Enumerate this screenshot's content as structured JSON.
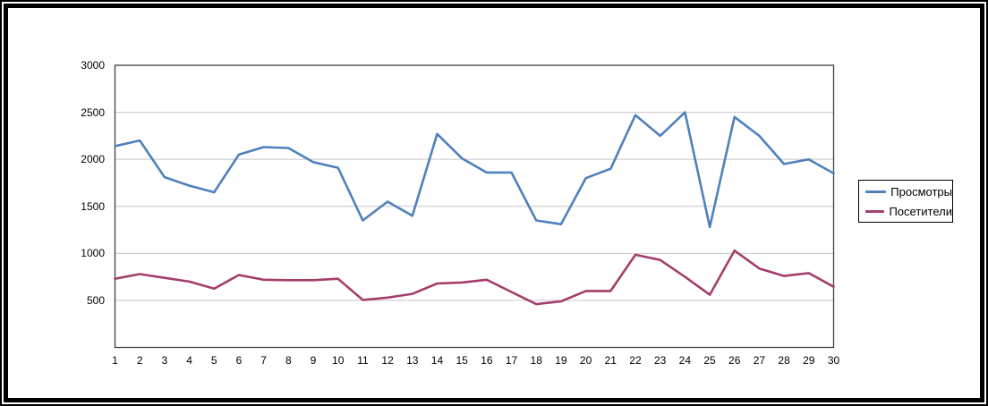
{
  "chart_data": {
    "type": "line",
    "title": "",
    "xlabel": "",
    "ylabel": "",
    "categories": [
      1,
      2,
      3,
      4,
      5,
      6,
      7,
      8,
      9,
      10,
      11,
      12,
      13,
      14,
      15,
      16,
      17,
      18,
      19,
      20,
      21,
      22,
      23,
      24,
      25,
      26,
      27,
      28,
      29,
      30
    ],
    "series": [
      {
        "name": "Просмотры",
        "color": "#4F81BD",
        "values": [
          2140,
          2200,
          1810,
          1720,
          1650,
          2050,
          2130,
          2120,
          1970,
          1910,
          1350,
          1550,
          1400,
          2270,
          2010,
          1860,
          1860,
          1350,
          1310,
          1800,
          1900,
          2470,
          2250,
          2500,
          1280,
          2450,
          2250,
          1950,
          2000,
          1850
        ]
      },
      {
        "name": "Посетители",
        "color": "#A43E6B",
        "values": [
          730,
          780,
          740,
          700,
          625,
          770,
          720,
          715,
          715,
          730,
          505,
          530,
          570,
          680,
          690,
          720,
          590,
          460,
          490,
          600,
          600,
          985,
          930,
          750,
          560,
          1030,
          840,
          760,
          790,
          645
        ]
      }
    ],
    "ylim": [
      0,
      3000
    ],
    "y_ticks": [
      500,
      1000,
      1500,
      2000,
      2500,
      3000
    ],
    "grid": true,
    "legend_position": "right",
    "gridline_color": "#C6C6C6",
    "axis_color": "#404040",
    "frame_color": "#000000"
  },
  "legend": {
    "views_label": "Просмотры",
    "visitors_label": "Посетители"
  }
}
